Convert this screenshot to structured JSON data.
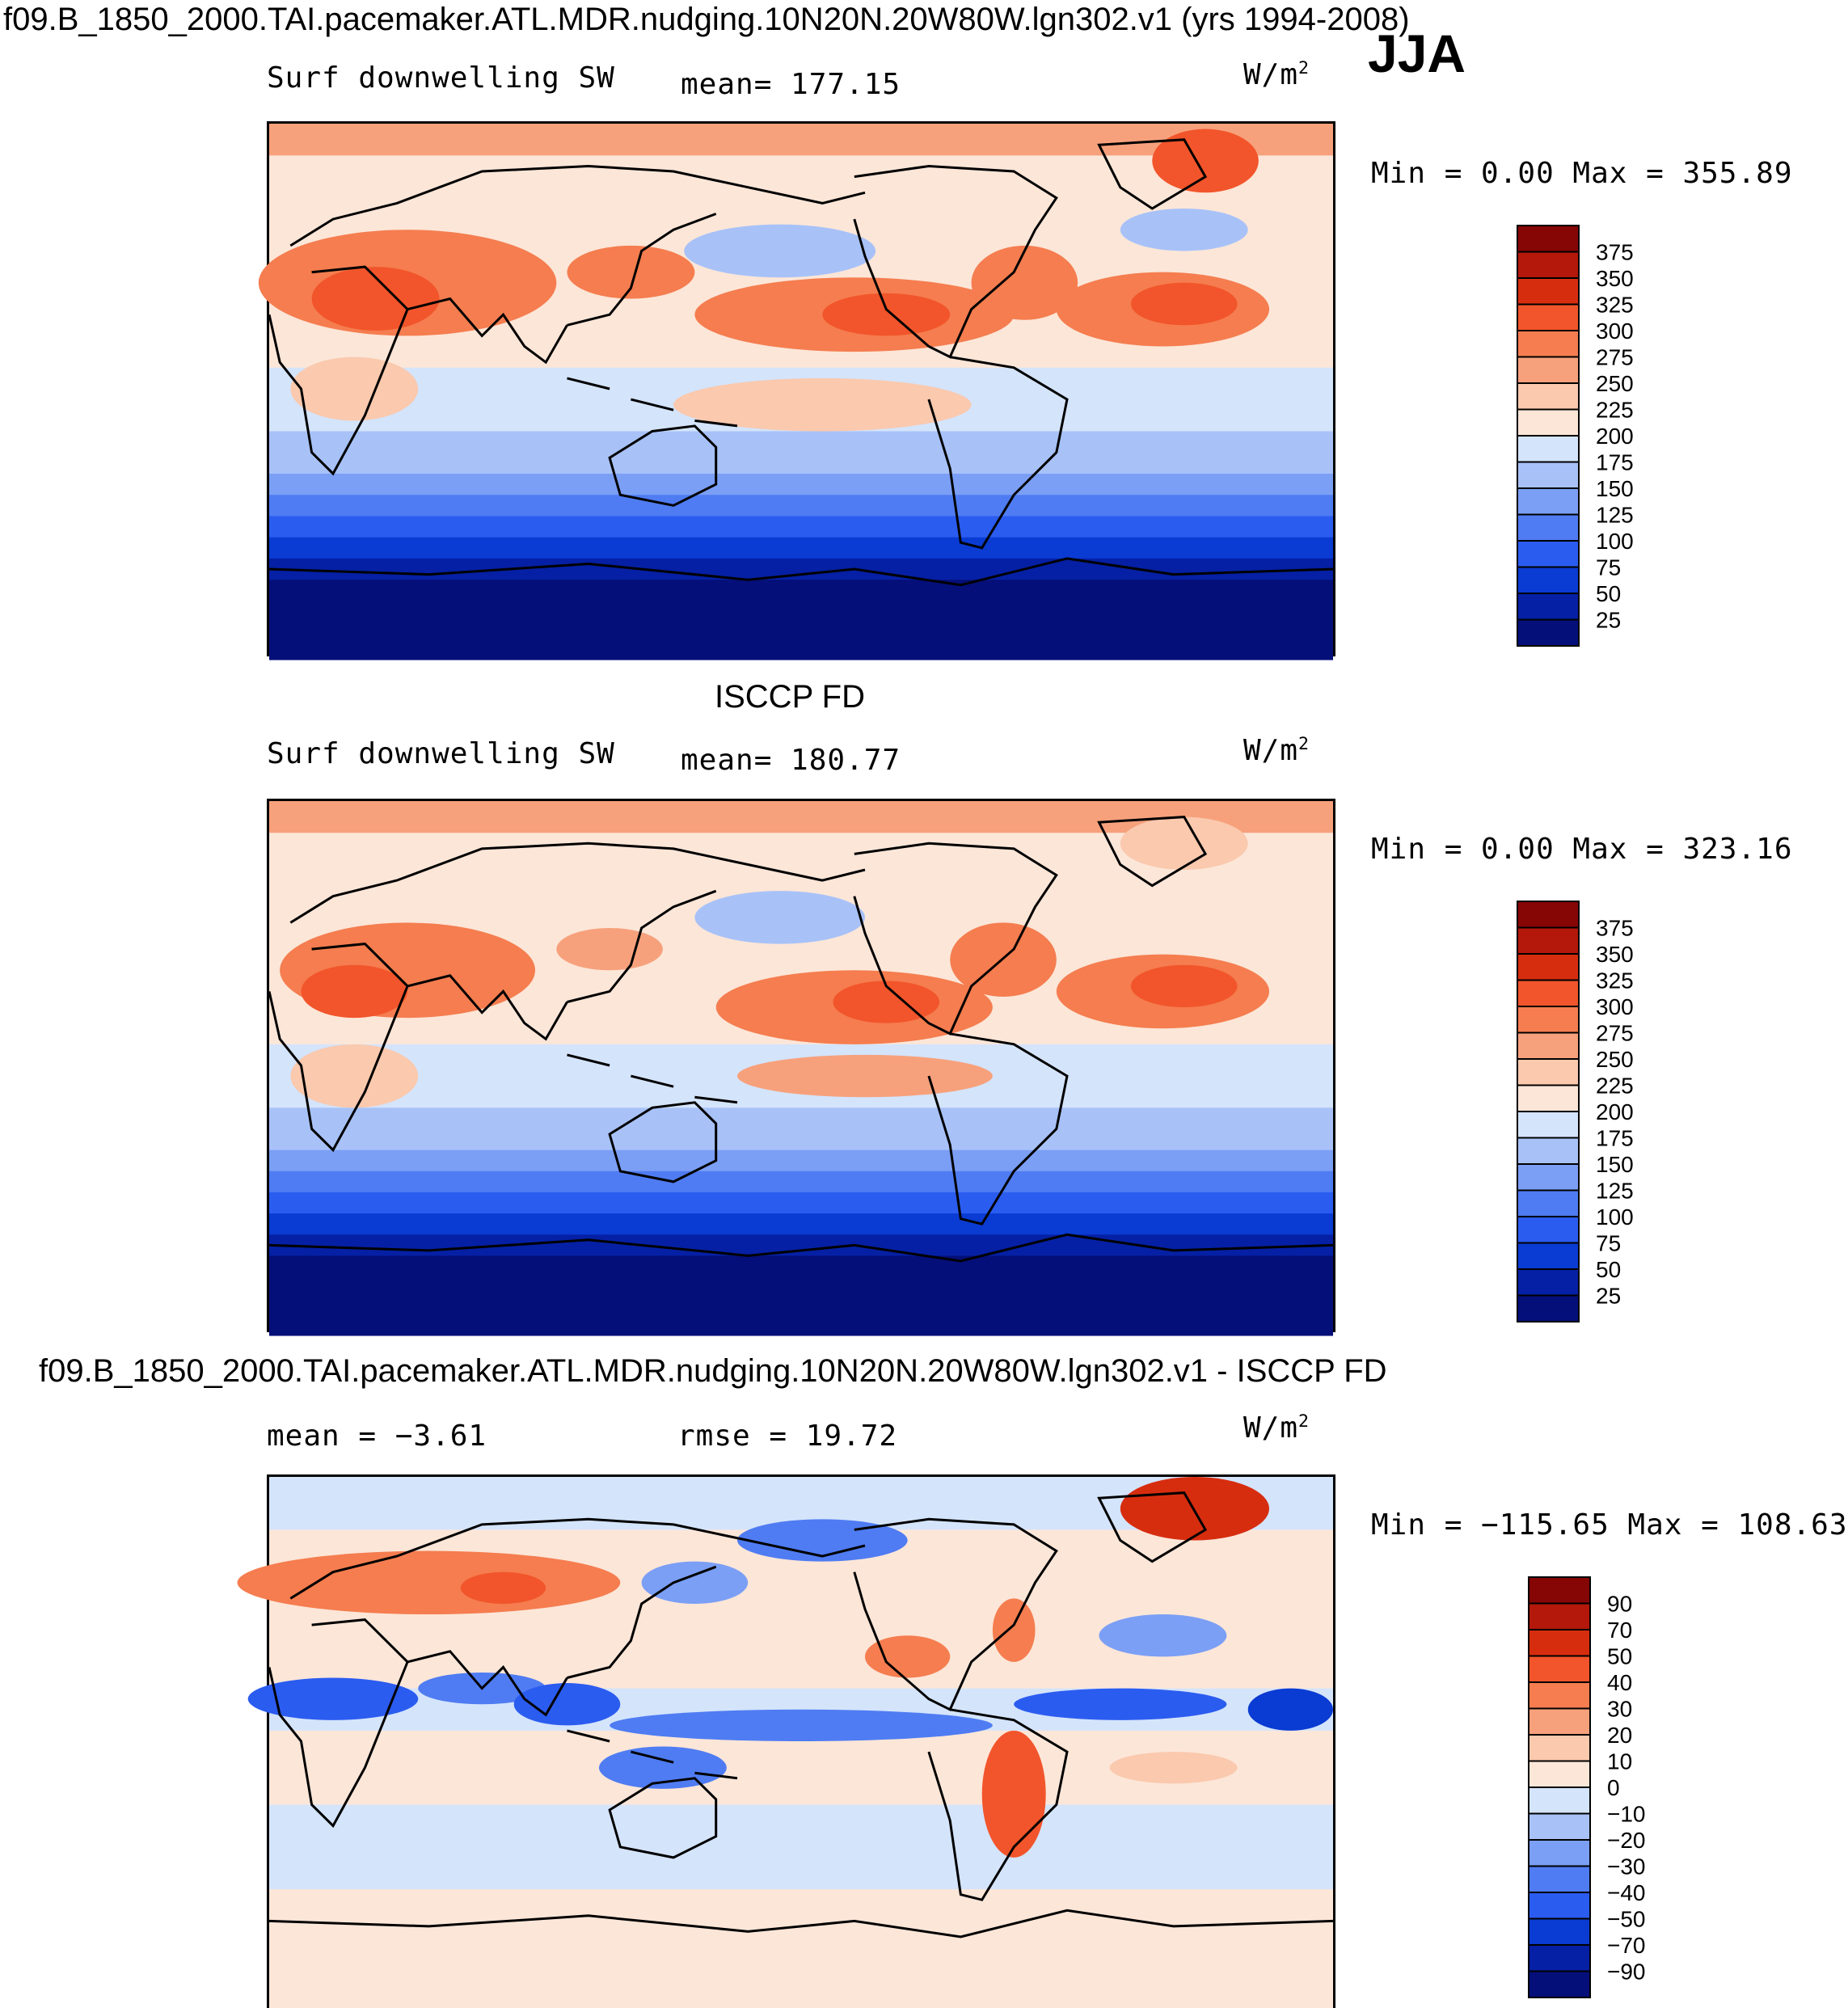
{
  "figure": {
    "title": "f09.B_1850_2000.TAI.pacemaker.ATL.MDR.nudging.10N20N.20W80W.lgn302.v1 (yrs 1994-2008)",
    "season": "JJA"
  },
  "panels": [
    {
      "heading": "",
      "variable": "Surf downwelling SW",
      "stat1": "mean=  177.15",
      "stat2": "",
      "units": "W/m",
      "units_sup": "2",
      "minmax": "Min =    0.00 Max = 355.89",
      "colors": [
        "#050F79",
        "#0520A4",
        "#0A3BD2",
        "#2B5CF0",
        "#4F7CF2",
        "#7B9FF5",
        "#A8C2F8",
        "#D4E4FB",
        "#FCE6D8",
        "#FAC9AE",
        "#F7A17C",
        "#F57D4F",
        "#F2552B",
        "#D72D0F",
        "#B3180A",
        "#850605"
      ],
      "labels": [
        "375",
        "350",
        "325",
        "300",
        "275",
        "250",
        "225",
        "200",
        "175",
        "150",
        "125",
        "100",
        "75",
        "50",
        "25"
      ]
    },
    {
      "heading": "ISCCP FD",
      "variable": "Surf downwelling SW",
      "stat1": "mean=  180.77",
      "stat2": "",
      "units": "W/m",
      "units_sup": "2",
      "minmax": "Min =    0.00 Max = 323.16",
      "colors": [
        "#050F79",
        "#0520A4",
        "#0A3BD2",
        "#2B5CF0",
        "#4F7CF2",
        "#7B9FF5",
        "#A8C2F8",
        "#D4E4FB",
        "#FCE6D8",
        "#FAC9AE",
        "#F7A17C",
        "#F57D4F",
        "#F2552B",
        "#D72D0F",
        "#B3180A",
        "#850605"
      ],
      "labels": [
        "375",
        "350",
        "325",
        "300",
        "275",
        "250",
        "225",
        "200",
        "175",
        "150",
        "125",
        "100",
        "75",
        "50",
        "25"
      ]
    },
    {
      "heading": "f09.B_1850_2000.TAI.pacemaker.ATL.MDR.nudging.10N20N.20W80W.lgn302.v1 - ISCCP FD",
      "variable": "",
      "stat1": "mean =   −3.61",
      "stat2": "rmse =   19.72",
      "units": "W/m",
      "units_sup": "2",
      "minmax": "Min = −115.65 Max = 108.63",
      "colors": [
        "#050F79",
        "#0520A4",
        "#0A3BD2",
        "#2B5CF0",
        "#4F7CF2",
        "#7B9FF5",
        "#A8C2F8",
        "#D4E4FB",
        "#FCE6D8",
        "#FAC9AE",
        "#F7A17C",
        "#F57D4F",
        "#F2552B",
        "#D72D0F",
        "#B3180A",
        "#850605"
      ],
      "labels": [
        "90",
        "70",
        "50",
        "40",
        "30",
        "20",
        "10",
        "0",
        "−10",
        "−20",
        "−30",
        "−40",
        "−50",
        "−70",
        "−90"
      ]
    }
  ],
  "chart_data": [
    {
      "type": "heatmap",
      "title": "Surf downwelling SW",
      "units": "W/m2",
      "mean": 177.15,
      "min": 0.0,
      "max": 355.89,
      "contour_levels": [
        25,
        50,
        75,
        100,
        125,
        150,
        175,
        200,
        225,
        250,
        275,
        300,
        325,
        350,
        375
      ]
    },
    {
      "type": "heatmap",
      "title": "Surf downwelling SW (ISCCP FD)",
      "units": "W/m2",
      "mean": 180.77,
      "min": 0.0,
      "max": 323.16,
      "contour_levels": [
        25,
        50,
        75,
        100,
        125,
        150,
        175,
        200,
        225,
        250,
        275,
        300,
        325,
        350,
        375
      ]
    },
    {
      "type": "heatmap",
      "title": "f09.B_1850_2000.TAI.pacemaker.ATL.MDR.nudging.10N20N.20W80W.lgn302.v1 - ISCCP FD",
      "units": "W/m2",
      "mean": -3.61,
      "rmse": 19.72,
      "min": -115.65,
      "max": 108.63,
      "contour_levels": [
        -90,
        -70,
        -50,
        -40,
        -30,
        -20,
        -10,
        0,
        10,
        20,
        30,
        40,
        50,
        70,
        90
      ]
    }
  ]
}
